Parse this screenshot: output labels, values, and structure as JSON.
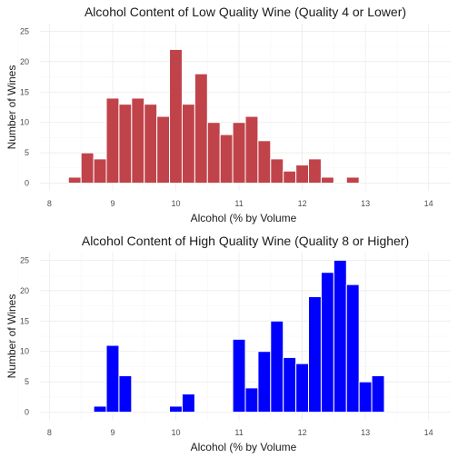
{
  "chart_data": [
    {
      "type": "bar",
      "title": "Alcohol Content of Low Quality Wine (Quality 4 or Lower)",
      "xlabel": "Alcohol (% by Volume",
      "ylabel": "Number of Wines",
      "xlim": [
        8,
        14
      ],
      "ylim": [
        0,
        25
      ],
      "xticks": [
        "8",
        "9",
        "10",
        "11",
        "12",
        "13",
        "14"
      ],
      "yticks": [
        "0",
        "5",
        "10",
        "15",
        "20",
        "25"
      ],
      "grid": true,
      "color": "#c0434a",
      "bin_width": 0.2,
      "bin_centers": [
        8.4,
        8.6,
        8.8,
        9.0,
        9.2,
        9.4,
        9.6,
        9.8,
        10.0,
        10.2,
        10.4,
        10.6,
        10.8,
        11.0,
        11.2,
        11.4,
        11.6,
        11.8,
        12.0,
        12.2,
        12.4,
        12.6,
        12.8,
        13.0,
        13.2,
        13.4,
        13.6
      ],
      "values": [
        1,
        5,
        4,
        14,
        13,
        14,
        13,
        11,
        22,
        13,
        18,
        10,
        8,
        10,
        11,
        7,
        4,
        2,
        3,
        4,
        1,
        0,
        1,
        0,
        0,
        0,
        0
      ]
    },
    {
      "type": "bar",
      "title": "Alcohol Content of High Quality Wine (Quality 8 or Higher)",
      "xlabel": "Alcohol (% by Volume",
      "ylabel": "Number of Wines",
      "xlim": [
        8,
        14
      ],
      "ylim": [
        0,
        25
      ],
      "xticks": [
        "8",
        "9",
        "10",
        "11",
        "12",
        "13",
        "14"
      ],
      "yticks": [
        "0",
        "5",
        "10",
        "15",
        "20",
        "25"
      ],
      "grid": true,
      "color": "#0000ff",
      "bin_width": 0.2,
      "bin_centers": [
        8.4,
        8.6,
        8.8,
        9.0,
        9.2,
        9.4,
        9.6,
        9.8,
        10.0,
        10.2,
        10.4,
        10.6,
        10.8,
        11.0,
        11.2,
        11.4,
        11.6,
        11.8,
        12.0,
        12.2,
        12.4,
        12.6,
        12.8,
        13.0,
        13.2,
        13.4,
        13.6
      ],
      "values": [
        0,
        0,
        1,
        11,
        6,
        0,
        0,
        0,
        1,
        3,
        0,
        0,
        0,
        12,
        4,
        10,
        15,
        9,
        8,
        19,
        23,
        25,
        21,
        5,
        6,
        0,
        0
      ]
    }
  ]
}
